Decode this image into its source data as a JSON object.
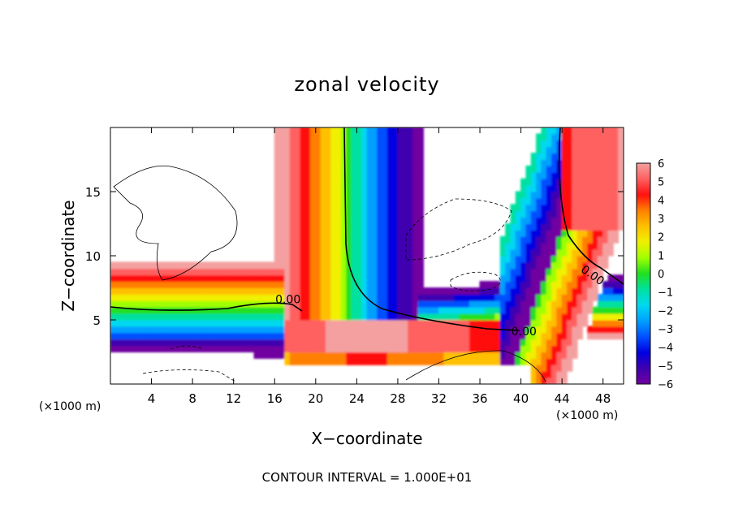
{
  "chart_data": {
    "type": "heatmap",
    "title": "zonal velocity",
    "xlabel": "X−coordinate",
    "ylabel": "Z−coordinate",
    "x_unit_left": "(×1000 m)",
    "x_unit_right": "(×1000 m)",
    "xlim": [
      0,
      50
    ],
    "ylim": [
      0,
      20
    ],
    "x_ticks": [
      {
        "value": 4,
        "label": "4"
      },
      {
        "value": 8,
        "label": "8"
      },
      {
        "value": 12,
        "label": "12"
      },
      {
        "value": 16,
        "label": "16"
      },
      {
        "value": 20,
        "label": "20"
      },
      {
        "value": 24,
        "label": "24"
      },
      {
        "value": 28,
        "label": "28"
      },
      {
        "value": 32,
        "label": "32"
      },
      {
        "value": 36,
        "label": "36"
      },
      {
        "value": 40,
        "label": "40"
      },
      {
        "value": 44,
        "label": "44"
      },
      {
        "value": 48,
        "label": "48"
      }
    ],
    "y_ticks": [
      {
        "value": 5,
        "label": "5"
      },
      {
        "value": 10,
        "label": "10"
      },
      {
        "value": 15,
        "label": "15"
      }
    ],
    "colorbar": {
      "min": -6,
      "max": 6,
      "labels": [
        {
          "value": 6,
          "label": "6"
        },
        {
          "value": 5,
          "label": "5"
        },
        {
          "value": 4,
          "label": "4"
        },
        {
          "value": 3,
          "label": "3"
        },
        {
          "value": 2,
          "label": "2"
        },
        {
          "value": 1,
          "label": "1"
        },
        {
          "value": 0,
          "label": "0"
        },
        {
          "value": -1,
          "label": "−1"
        },
        {
          "value": -2,
          "label": "−2"
        },
        {
          "value": -3,
          "label": "−3"
        },
        {
          "value": -4,
          "label": "−4"
        },
        {
          "value": -5,
          "label": "−5"
        },
        {
          "value": -6,
          "label": "−6"
        }
      ],
      "colors": [
        "#f4a0a0",
        "#ff6060",
        "#ff1010",
        "#ff8000",
        "#ffc000",
        "#f0f000",
        "#a0ff00",
        "#20e020",
        "#00e0a0",
        "#00d8f0",
        "#00a0ff",
        "#0050ff",
        "#0000e0",
        "#4000b0",
        "#7000a0"
      ]
    },
    "contour_labels": [
      {
        "x": 17.3,
        "z": 6.6,
        "label": "0.00"
      },
      {
        "x": 40.3,
        "z": 4.1,
        "label": "0.00"
      },
      {
        "x": 47.0,
        "z": 8.5,
        "label": "0.00"
      }
    ],
    "footer": "CONTOUR INTERVAL = 1.000E+01"
  }
}
